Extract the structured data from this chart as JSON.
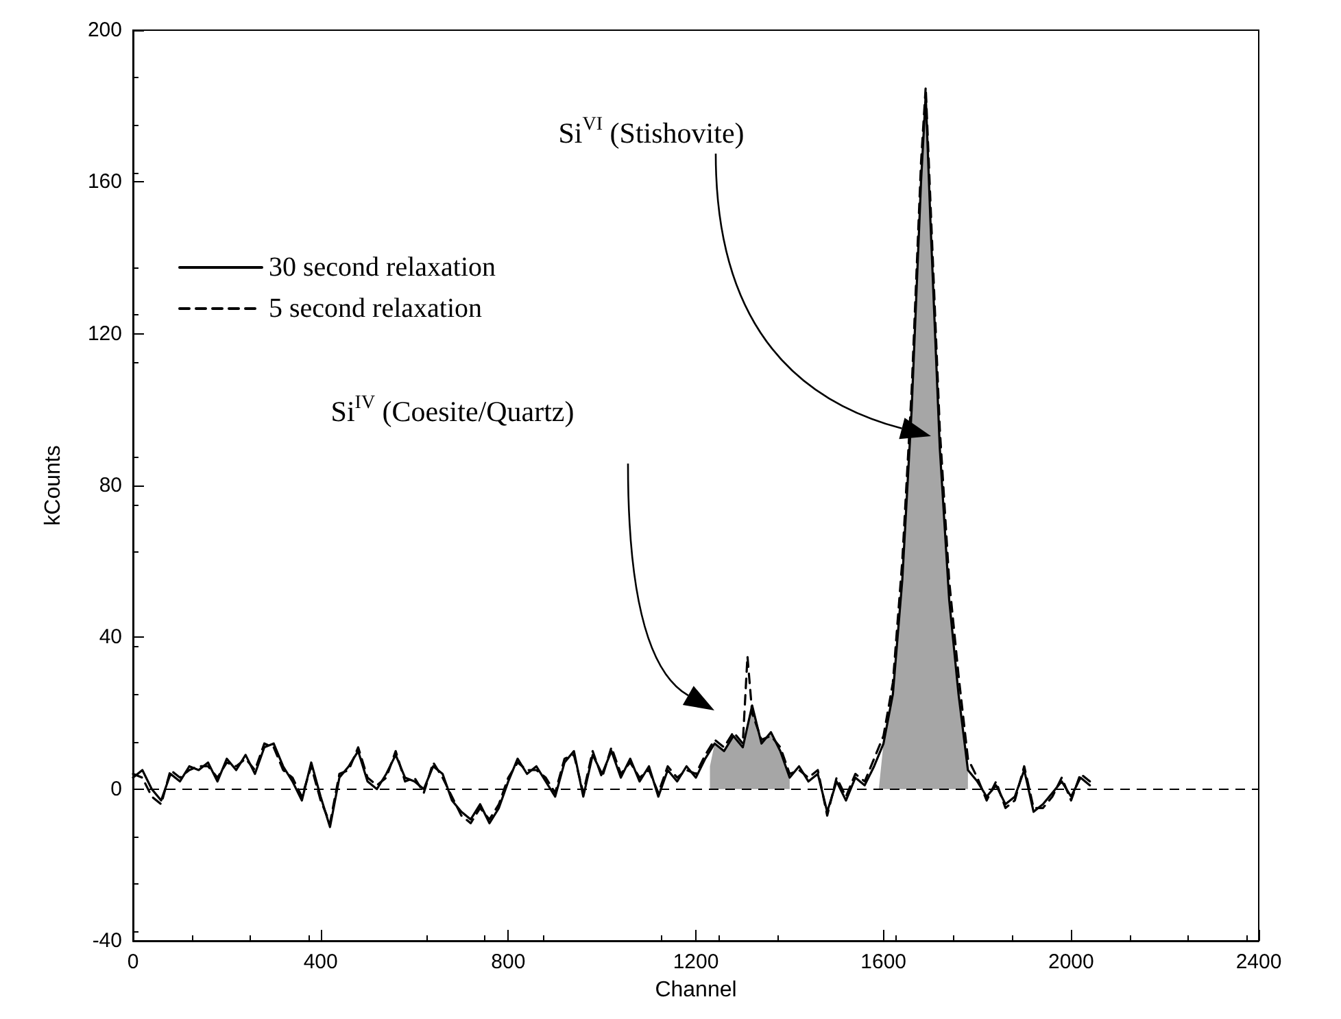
{
  "chart_data": {
    "type": "line",
    "xlabel": "Channel",
    "ylabel": "kCounts",
    "xlim": [
      0,
      2400
    ],
    "xticks": [
      0,
      400,
      800,
      1200,
      1600,
      2000,
      2400
    ],
    "ylim": [
      -40,
      200
    ],
    "yticks": [
      -40,
      0,
      40,
      80,
      120,
      160,
      200
    ],
    "grid": false,
    "legend": "top left",
    "marker": "none",
    "series": [
      {
        "name": "30 second relaxation",
        "color": "#000000",
        "line_style": "solid",
        "x": [
          0,
          20,
          40,
          60,
          80,
          100,
          120,
          140,
          160,
          180,
          200,
          220,
          240,
          260,
          280,
          300,
          320,
          340,
          360,
          380,
          400,
          420,
          440,
          460,
          480,
          500,
          520,
          540,
          560,
          580,
          600,
          620,
          640,
          660,
          680,
          700,
          720,
          740,
          760,
          780,
          800,
          820,
          840,
          860,
          880,
          900,
          920,
          940,
          960,
          980,
          1000,
          1020,
          1040,
          1060,
          1080,
          1100,
          1120,
          1140,
          1160,
          1180,
          1200,
          1220,
          1240,
          1260,
          1280,
          1300,
          1320,
          1340,
          1360,
          1380,
          1400,
          1420,
          1440,
          1460,
          1480,
          1500,
          1520,
          1540,
          1560,
          1580,
          1600,
          1620,
          1640,
          1660,
          1680,
          1690,
          1700,
          1720,
          1740,
          1760,
          1780,
          1800,
          1820,
          1840,
          1860,
          1880,
          1900,
          1920,
          1940,
          1960,
          1980,
          2000,
          2020,
          2040
        ],
        "values": [
          3,
          5,
          0,
          -3,
          4,
          2,
          6,
          5,
          7,
          2,
          8,
          5,
          9,
          4,
          11,
          12,
          6,
          2,
          -3,
          7,
          -2,
          -10,
          3,
          6,
          10,
          2,
          0,
          4,
          9,
          3,
          2,
          0,
          6,
          4,
          -3,
          -6,
          -8,
          -4,
          -9,
          -5,
          2,
          8,
          4,
          6,
          2,
          -2,
          7,
          10,
          -2,
          9,
          4,
          10,
          3,
          8,
          2,
          6,
          -2,
          5,
          2,
          6,
          3,
          8,
          12,
          10,
          14,
          11,
          22,
          12,
          15,
          10,
          3,
          6,
          2,
          4,
          -6,
          2,
          -3,
          3,
          1,
          6,
          12,
          25,
          55,
          100,
          160,
          183,
          150,
          90,
          50,
          25,
          5,
          2,
          -2,
          1,
          -4,
          -2,
          5,
          -6,
          -4,
          -1,
          2,
          -2,
          3,
          1
        ]
      },
      {
        "name": "5 second relaxation",
        "color": "#000000",
        "line_style": "dashed",
        "x": [
          0,
          20,
          40,
          60,
          80,
          100,
          120,
          140,
          160,
          180,
          200,
          220,
          240,
          260,
          280,
          300,
          320,
          340,
          360,
          380,
          400,
          420,
          440,
          460,
          480,
          500,
          520,
          540,
          560,
          580,
          600,
          620,
          640,
          660,
          680,
          700,
          720,
          740,
          760,
          780,
          800,
          820,
          840,
          860,
          880,
          900,
          920,
          940,
          960,
          980,
          1000,
          1020,
          1040,
          1060,
          1080,
          1100,
          1120,
          1140,
          1160,
          1180,
          1200,
          1220,
          1240,
          1260,
          1280,
          1300,
          1310,
          1320,
          1340,
          1360,
          1380,
          1400,
          1420,
          1440,
          1460,
          1480,
          1500,
          1520,
          1540,
          1560,
          1580,
          1600,
          1620,
          1640,
          1660,
          1680,
          1690,
          1700,
          1720,
          1740,
          1760,
          1780,
          1800,
          1820,
          1840,
          1860,
          1880,
          1900,
          1920,
          1940,
          1960,
          1980,
          2000,
          2020,
          2040
        ],
        "values": [
          4,
          3,
          -2,
          -4,
          5,
          3,
          5,
          6,
          6,
          3,
          7,
          6,
          8,
          5,
          12,
          11,
          5,
          3,
          -2,
          6,
          -3,
          -9,
          4,
          5,
          11,
          3,
          1,
          3,
          10,
          2,
          3,
          -1,
          7,
          3,
          -2,
          -7,
          -9,
          -5,
          -8,
          -4,
          3,
          7,
          5,
          5,
          3,
          -1,
          8,
          9,
          -1,
          10,
          3,
          11,
          4,
          7,
          3,
          5,
          -1,
          6,
          3,
          5,
          4,
          9,
          13,
          11,
          15,
          12,
          35,
          20,
          13,
          14,
          11,
          4,
          5,
          3,
          5,
          -7,
          3,
          -2,
          4,
          2,
          8,
          14,
          28,
          60,
          105,
          165,
          185,
          155,
          95,
          55,
          30,
          8,
          3,
          -3,
          2,
          -5,
          -3,
          6,
          -5,
          -5,
          -2,
          3,
          -3,
          4,
          2
        ]
      },
      {
        "type": "area",
        "color": "#a6a6a6",
        "x": [
          1230,
          1240,
          1260,
          1280,
          1300,
          1320,
          1340,
          1360,
          1380,
          1400,
          1500,
          1590,
          1600,
          1620,
          1640,
          1660,
          1680,
          1690,
          1700,
          1720,
          1740,
          1760,
          1780
        ],
        "values": [
          6,
          12,
          10,
          14,
          11,
          22,
          12,
          15,
          10,
          3,
          null,
          0,
          12,
          25,
          55,
          100,
          160,
          183,
          150,
          90,
          50,
          25,
          5
        ]
      }
    ],
    "ref_lines": [
      {
        "axis": "y",
        "value": 0,
        "color": "#000000",
        "line_style": "dashed"
      }
    ],
    "annotations": [
      "Si$^{VI}$ (Stishovite)",
      "Si$^{IV}$ (Coesite/Quartz)"
    ]
  }
}
